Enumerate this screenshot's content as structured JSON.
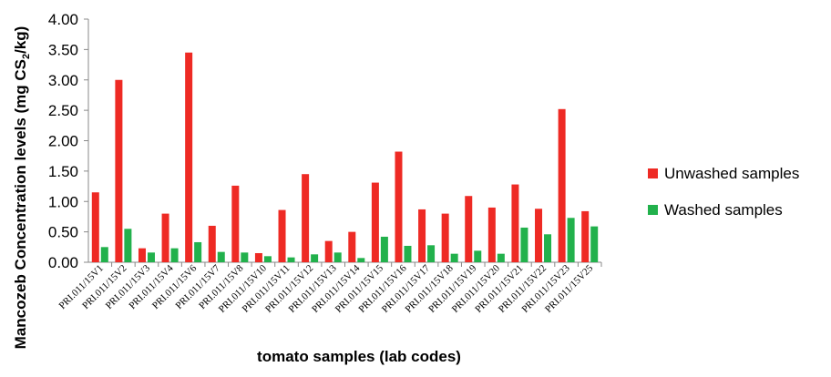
{
  "chart_data": {
    "type": "bar",
    "xlabel": "tomato samples (lab codes)",
    "ylabel_main": "Mancozeb Concentration levels (mg CS",
    "ylabel_sub": "2",
    "ylabel_tail": "/kg)",
    "ylim": [
      0,
      4
    ],
    "yticks": [
      "0.00",
      "0.50",
      "1.00",
      "1.50",
      "2.00",
      "2.50",
      "3.00",
      "3.50",
      "4.00"
    ],
    "categories": [
      "PRI.011/15V1",
      "PRI.011/15V2",
      "PRI.011/15V3",
      "PRI.011/15V4",
      "PRI.011/15V6",
      "PRI.011/15V7",
      "PRI.011/15V8",
      "PRI.011/15V10",
      "PRI.011/15V11",
      "PRI.011/15V12",
      "PRI.011/15V13",
      "PRI.011/15V14",
      "PRI.011/15V15",
      "PRI.011/15V16",
      "PRI.011/15V17",
      "PRI.011/15V18",
      "PRI.011/15V19",
      "PRI.011/15V20",
      "PRI.011/15V21",
      "PRI.011/15V22",
      "PRI.011/15V23",
      "PRI.011/15V25"
    ],
    "series": [
      {
        "name": "Unwashed samples",
        "color": "#ee2a24",
        "values": [
          1.15,
          3.0,
          0.23,
          0.8,
          3.45,
          0.6,
          1.26,
          0.15,
          0.86,
          1.45,
          0.35,
          0.5,
          1.31,
          1.82,
          0.87,
          0.8,
          1.09,
          0.9,
          1.28,
          0.88,
          2.52,
          0.84
        ]
      },
      {
        "name": "Washed samples",
        "color": "#22b14c",
        "values": [
          0.25,
          0.55,
          0.16,
          0.23,
          0.33,
          0.17,
          0.16,
          0.1,
          0.08,
          0.13,
          0.16,
          0.07,
          0.42,
          0.27,
          0.28,
          0.14,
          0.19,
          0.14,
          0.57,
          0.46,
          0.73,
          0.59
        ]
      }
    ],
    "grid": false,
    "legend_position": "right"
  }
}
